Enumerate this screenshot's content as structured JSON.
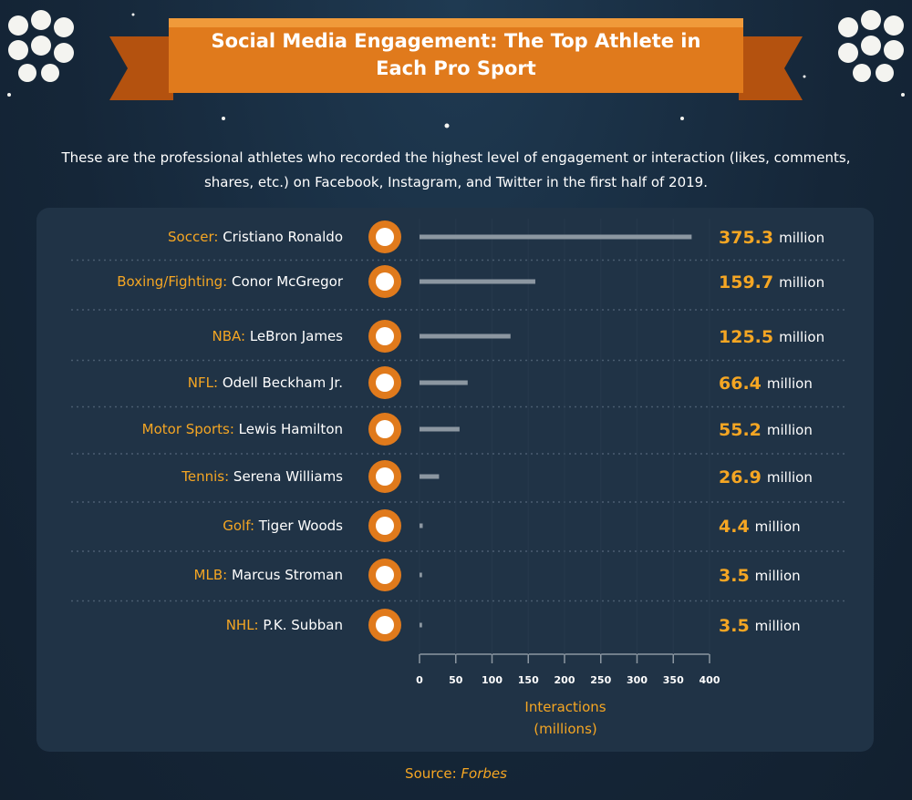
{
  "chart_data": {
    "type": "bar",
    "orientation": "horizontal",
    "title": "Social Media Engagement: The Top Athlete in Each Pro Sport",
    "subtitle": "These are the professional athletes who recorded the highest level of engagement or interaction (likes, comments, shares, etc.) on Facebook, Instagram, and Twitter in the first half of 2019.",
    "categories": [
      "Soccer: Cristiano Ronaldo",
      "Boxing/Fighting: Conor McGregor",
      "NBA: LeBron James",
      "NFL: Odell Beckham Jr.",
      "Motor Sports: Lewis Hamilton",
      "Tennis: Serena Williams",
      "Golf: Tiger Woods",
      "MLB: Marcus Stroman",
      "NHL: P.K. Subban"
    ],
    "values": [
      375.3,
      159.7,
      125.5,
      66.4,
      55.2,
      26.9,
      4.4,
      3.5,
      3.5
    ],
    "value_unit": "million",
    "color": "#8c97a1",
    "xlim": [
      0,
      400
    ],
    "xticks": [
      0,
      50,
      100,
      150,
      200,
      250,
      300,
      350,
      400
    ],
    "x_label": "Interactions (millions)",
    "grid": true,
    "source_label": "Source:",
    "source": "Forbes"
  }
}
